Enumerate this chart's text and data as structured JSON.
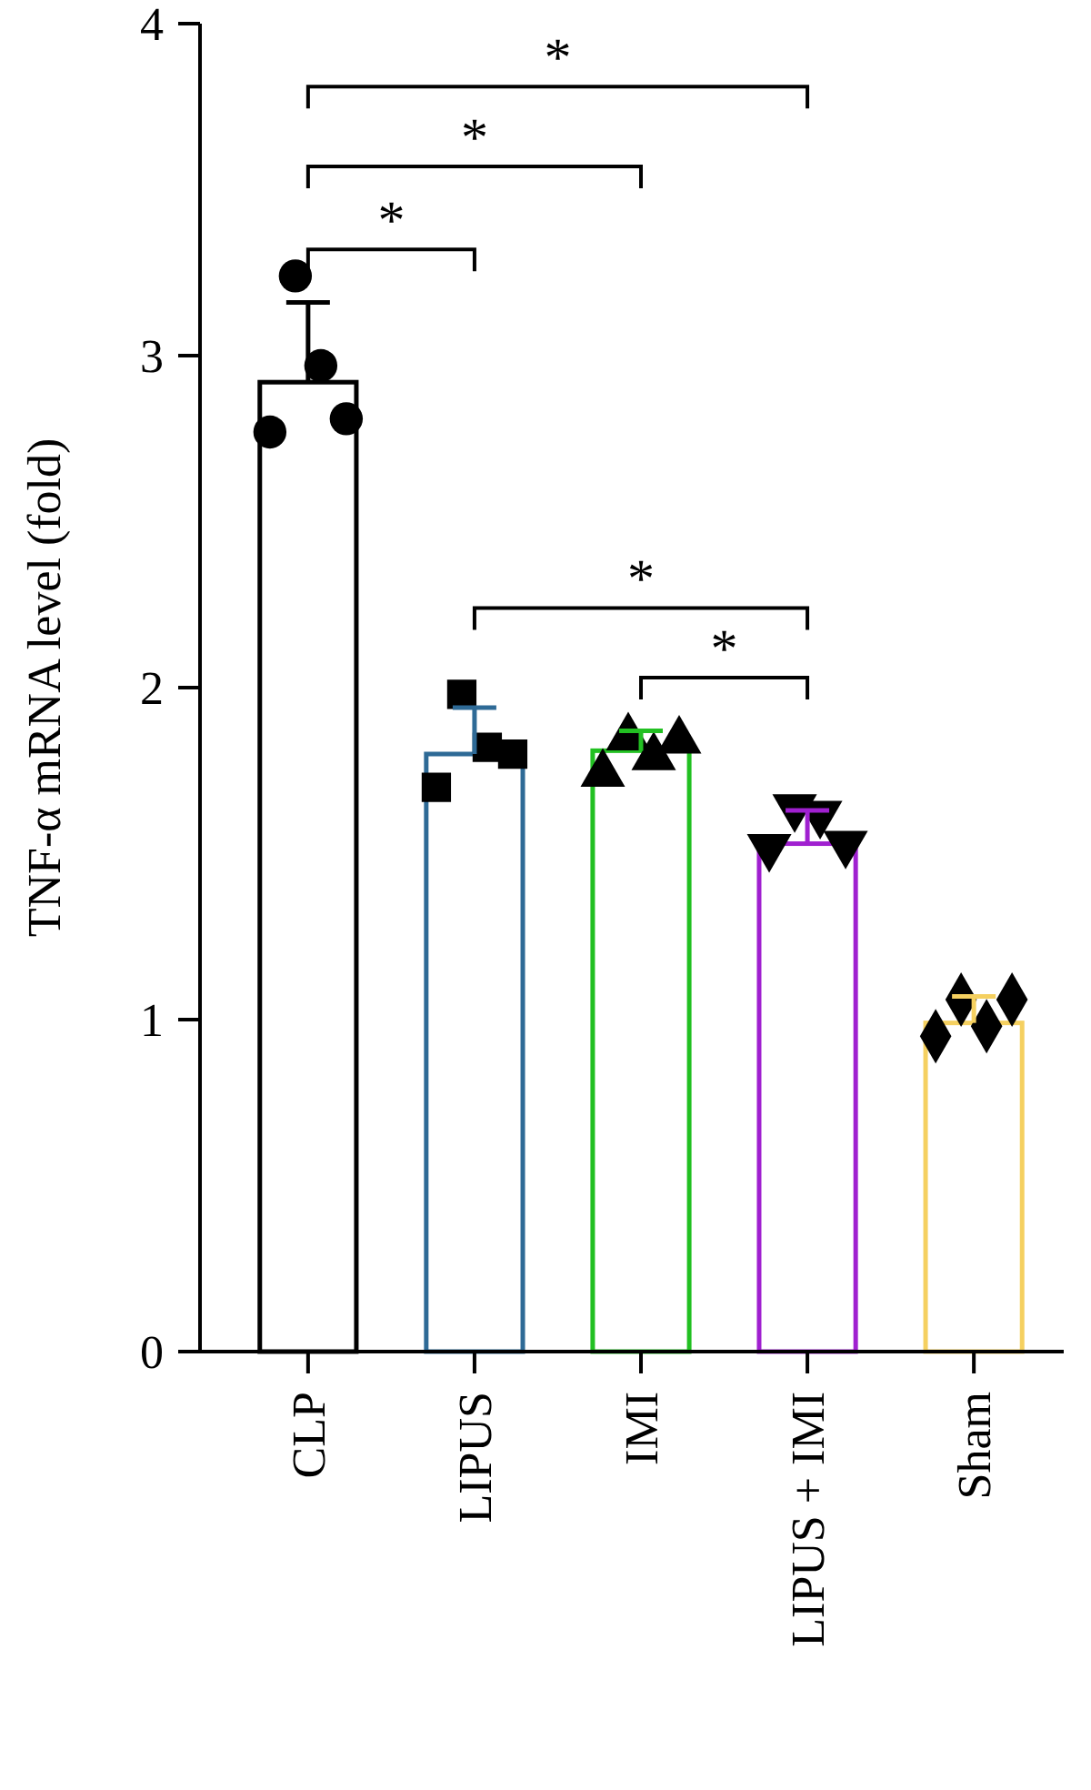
{
  "chart_data": {
    "type": "bar",
    "ylabel": "TNF-α mRNA level (fold)",
    "categories": [
      "CLP",
      "LIPUS",
      "IMI",
      "LIPUS + IMI",
      "Sham"
    ],
    "series": [
      {
        "values": [
          2.92,
          1.8,
          1.81,
          1.53,
          0.99
        ],
        "errors": [
          0.24,
          0.14,
          0.06,
          0.1,
          0.08
        ],
        "colors": [
          "#000000",
          "#2e6a96",
          "#22c022",
          "#a020d0",
          "#f5d060"
        ]
      },
      {
        "type": "scatter",
        "marker": "circle",
        "color": "#000000",
        "x": [
          "CLP",
          "CLP",
          "CLP",
          "CLP"
        ],
        "values": [
          2.77,
          3.24,
          2.97,
          2.81
        ]
      },
      {
        "type": "scatter",
        "marker": "square",
        "color": "#000000",
        "x": [
          "LIPUS",
          "LIPUS",
          "LIPUS",
          "LIPUS"
        ],
        "values": [
          1.7,
          1.98,
          1.82,
          1.8
        ]
      },
      {
        "type": "scatter",
        "marker": "triangle",
        "color": "#000000",
        "x": [
          "IMI",
          "IMI",
          "IMI",
          "IMI"
        ],
        "values": [
          1.74,
          1.85,
          1.79,
          1.84
        ]
      },
      {
        "type": "scatter",
        "marker": "triangle-down",
        "color": "#000000",
        "x": [
          "LIPUS + IMI",
          "LIPUS + IMI",
          "LIPUS + IMI",
          "LIPUS + IMI"
        ],
        "values": [
          1.52,
          1.64,
          1.62,
          1.53
        ]
      },
      {
        "type": "scatter",
        "marker": "diamond",
        "color": "#000000",
        "x": [
          "Sham",
          "Sham",
          "Sham",
          "Sham"
        ],
        "values": [
          0.95,
          1.06,
          0.98,
          1.06
        ]
      }
    ],
    "ylim": [
      0,
      4
    ],
    "yticks": [
      0,
      1,
      2,
      3,
      4
    ],
    "grid": false,
    "annotations": [
      "*",
      "*",
      "*",
      "*",
      "*"
    ]
  }
}
